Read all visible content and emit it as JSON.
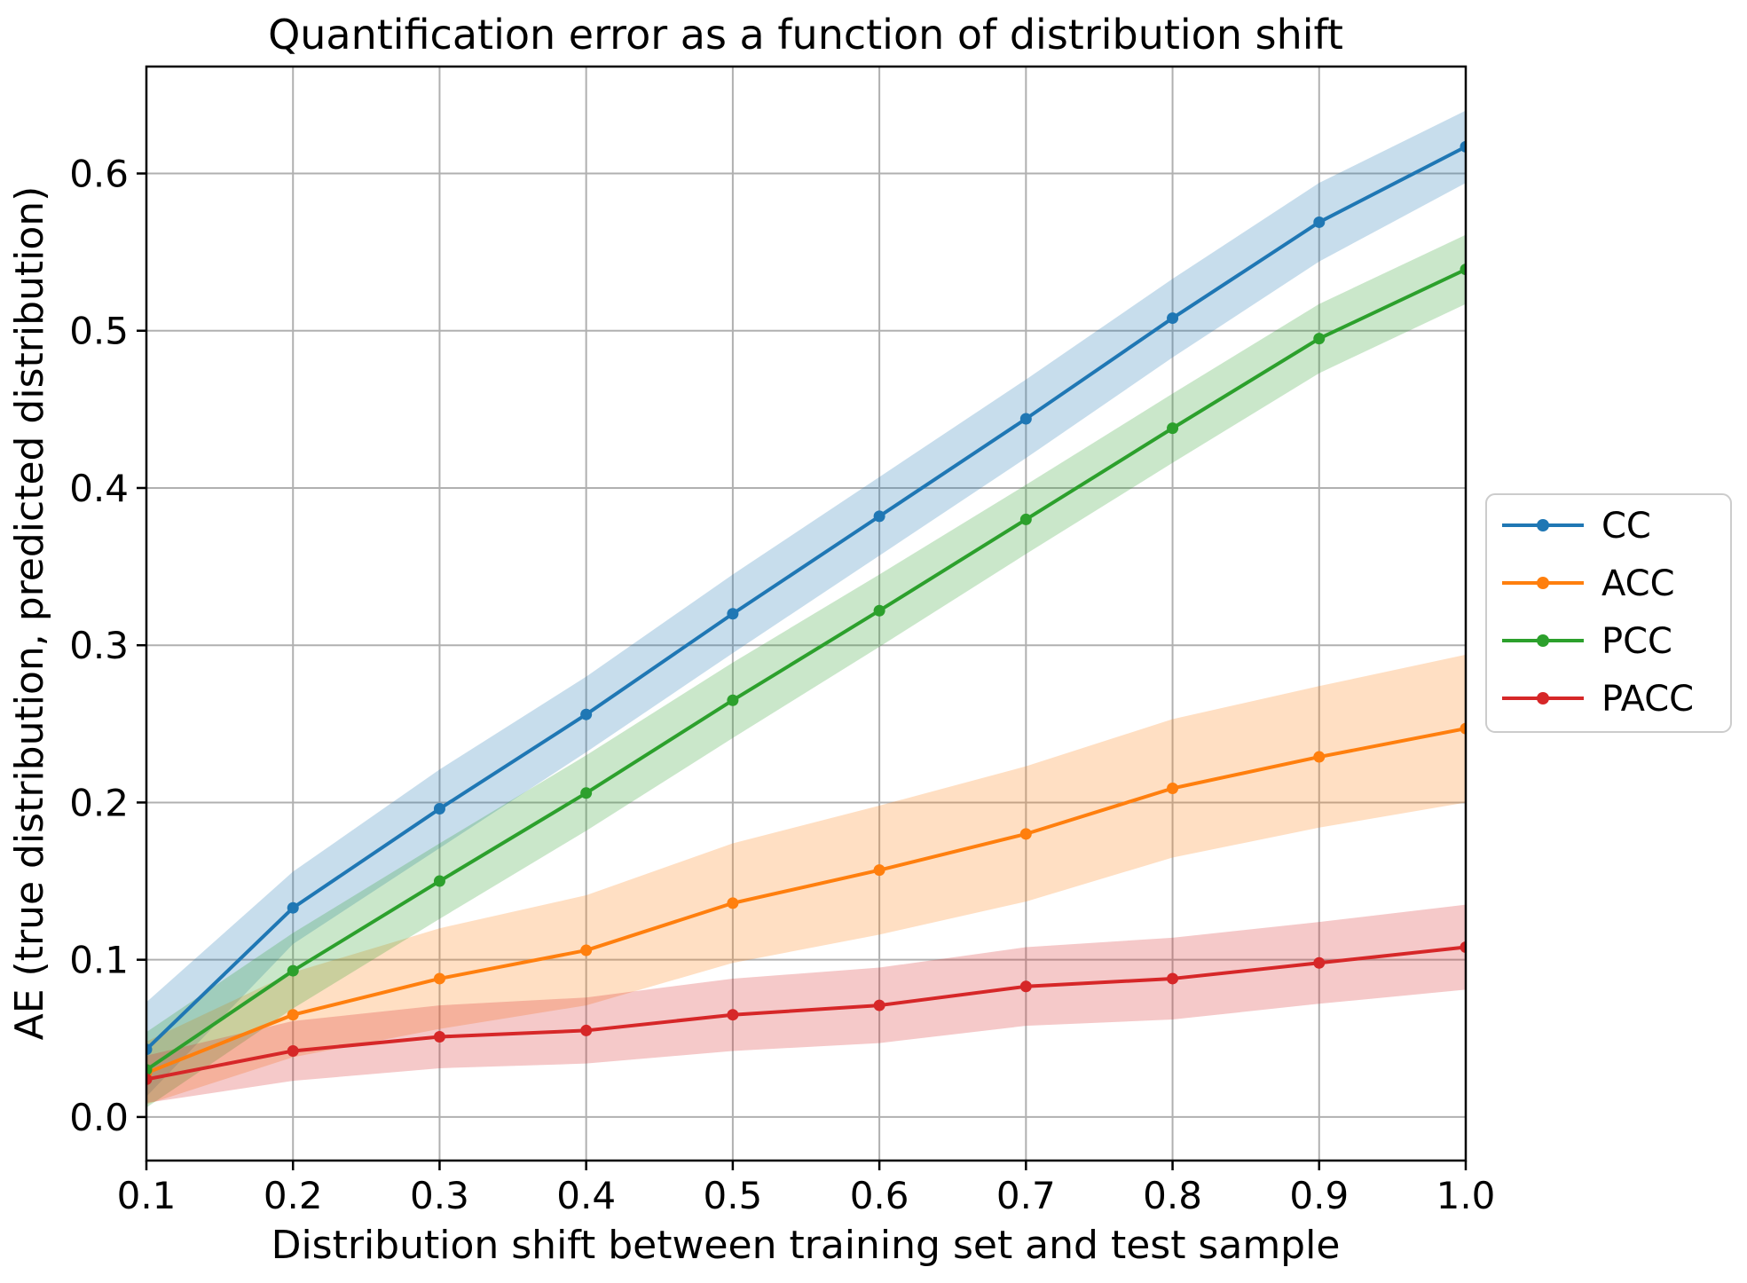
{
  "title": "Quantification error as a function of distribution shift",
  "axes": {
    "xlabel": "Distribution shift between training set and test sample",
    "ylabel": "AE (true distribution, predicted distribution)",
    "x_ticks": [
      0.1,
      0.2,
      0.3,
      0.4,
      0.5,
      0.6,
      0.7,
      0.8,
      0.9,
      1.0
    ],
    "x_tick_labels": [
      "0.1",
      "0.2",
      "0.3",
      "0.4",
      "0.5",
      "0.6",
      "0.7",
      "0.8",
      "0.9",
      "1.0"
    ],
    "y_ticks": [
      0.0,
      0.1,
      0.2,
      0.3,
      0.4,
      0.5,
      0.6
    ],
    "y_tick_labels": [
      "0.0",
      "0.1",
      "0.2",
      "0.3",
      "0.4",
      "0.5",
      "0.6"
    ],
    "xlim": [
      0.1,
      1.0
    ],
    "ylim": [
      -0.0277,
      0.668
    ],
    "grid": true
  },
  "style": {
    "grid_color": "#b0b0b0",
    "spine_color": "#000000",
    "background": "#ffffff",
    "band_opacity": 0.25,
    "legend_border_color": "#cccccc",
    "legend_background": "#ffffff"
  },
  "chart_data": {
    "type": "line",
    "title": "Quantification error as a function of distribution shift",
    "xlabel": "Distribution shift between training set and test sample",
    "ylabel": "AE (true distribution, predicted distribution)",
    "x": [
      0.1,
      0.2,
      0.3,
      0.4,
      0.5,
      0.6,
      0.7,
      0.8,
      0.9,
      1.0
    ],
    "xlim": [
      0.1,
      1.0
    ],
    "ylim": [
      -0.0277,
      0.668
    ],
    "grid": true,
    "legend_position": "center right, outside axes",
    "series": [
      {
        "name": "CC",
        "color": "#1f77b4",
        "values": [
          0.043,
          0.133,
          0.196,
          0.256,
          0.32,
          0.382,
          0.444,
          0.508,
          0.569,
          0.617
        ],
        "band_halfwidth": [
          0.03,
          0.023,
          0.025,
          0.024,
          0.025,
          0.025,
          0.025,
          0.025,
          0.025,
          0.023
        ]
      },
      {
        "name": "ACC",
        "color": "#ff7f0e",
        "values": [
          0.028,
          0.065,
          0.088,
          0.106,
          0.136,
          0.157,
          0.18,
          0.209,
          0.229,
          0.247
        ],
        "band_halfwidth": [
          0.02,
          0.027,
          0.032,
          0.035,
          0.038,
          0.041,
          0.043,
          0.044,
          0.045,
          0.047
        ]
      },
      {
        "name": "PCC",
        "color": "#2ca02c",
        "values": [
          0.03,
          0.093,
          0.15,
          0.206,
          0.265,
          0.322,
          0.38,
          0.438,
          0.495,
          0.539
        ],
        "band_halfwidth": [
          0.024,
          0.024,
          0.024,
          0.024,
          0.024,
          0.023,
          0.022,
          0.022,
          0.022,
          0.022
        ]
      },
      {
        "name": "PACC",
        "color": "#d62728",
        "values": [
          0.024,
          0.042,
          0.051,
          0.055,
          0.065,
          0.071,
          0.083,
          0.088,
          0.098,
          0.108
        ],
        "band_halfwidth": [
          0.015,
          0.019,
          0.02,
          0.021,
          0.023,
          0.024,
          0.025,
          0.026,
          0.026,
          0.027
        ]
      }
    ]
  }
}
